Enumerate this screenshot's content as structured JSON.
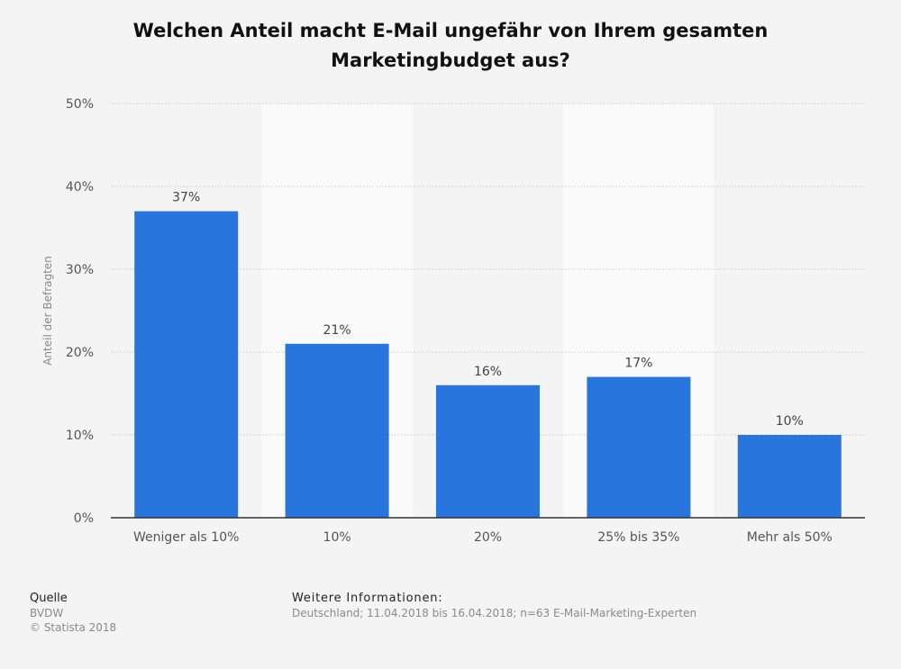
{
  "title_line1": "Welchen Anteil macht E-Mail ungefähr von Ihrem gesamten",
  "title_line2": "Marketingbudget aus?",
  "chart_data": {
    "type": "bar",
    "categories": [
      "Weniger als 10%",
      "10%",
      "20%",
      "25% bis 35%",
      "Mehr als 50%"
    ],
    "values": [
      37,
      21,
      16,
      17,
      10
    ],
    "data_labels": [
      "37%",
      "21%",
      "16%",
      "17%",
      "10%"
    ],
    "ylabel": "Anteil der Befragten",
    "ylim": [
      0,
      50
    ],
    "yticks": [
      0,
      10,
      20,
      30,
      40,
      50
    ],
    "ytick_labels": [
      "0%",
      "10%",
      "20%",
      "30%",
      "40%",
      "50%"
    ],
    "grid": true,
    "bar_color": "#2775dd",
    "band_color": "#fafafa"
  },
  "footer": {
    "source_heading": "Quelle",
    "source_name": "BVDW",
    "copyright": "© Statista 2018",
    "info_heading": "Weitere Informationen:",
    "info_text": "Deutschland; 11.04.2018 bis 16.04.2018; n=63 E-Mail-Marketing-Experten"
  }
}
